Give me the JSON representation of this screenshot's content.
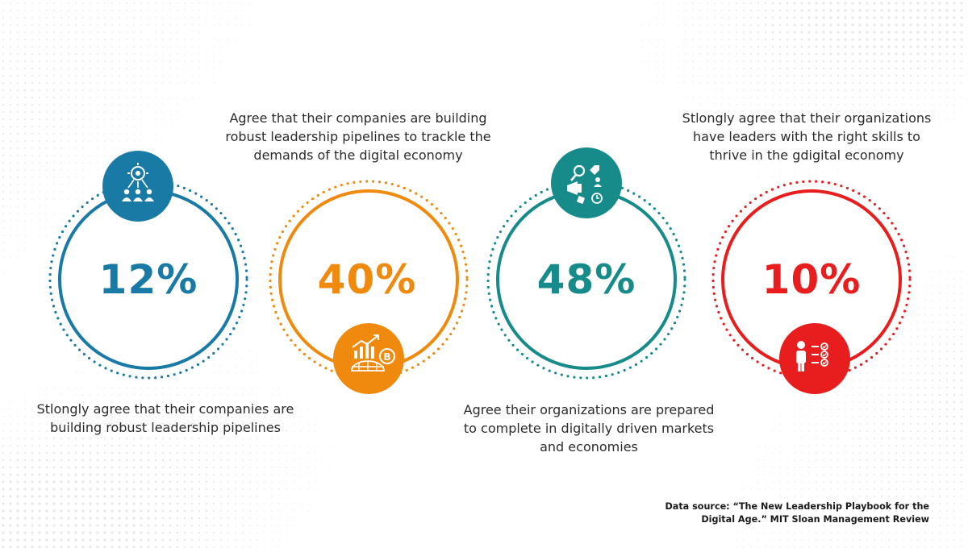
{
  "colors": {
    "blue": "#1a7aa6",
    "orange": "#f08a0f",
    "teal": "#178a8a",
    "red": "#e81d1d"
  },
  "stats": [
    {
      "value": "12%",
      "icon": "leadership-hierarchy-icon",
      "caption_lines": [
        "Stlongly agree that their companies are",
        "building robust leadership pipelines"
      ]
    },
    {
      "value": "40%",
      "icon": "globe-growth-chart-icon",
      "caption_lines": [
        "Agree that their companies are building",
        "robust leadership pipelines to trackle the",
        "demands of the digital economy"
      ]
    },
    {
      "value": "48%",
      "icon": "digital-marketing-icon",
      "caption_lines": [
        "Agree their organizations are prepared",
        "to complete in digitally driven markets",
        "and economies"
      ]
    },
    {
      "value": "10%",
      "icon": "person-checklist-icon",
      "caption_lines": [
        "Stlongly agree that their organizations",
        "have leaders with the right skills to",
        "thrive in the gdigital economy"
      ]
    }
  ],
  "source_lines": [
    "Data source: “The New Leadership Playbook for the",
    "Digital Age.” MIT Sloan Management Review"
  ]
}
